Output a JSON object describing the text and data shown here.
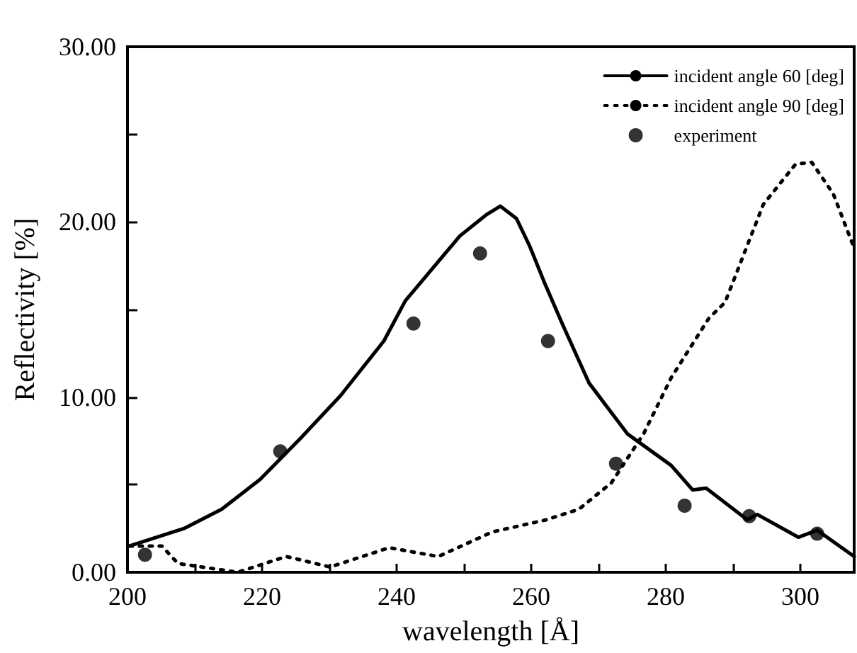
{
  "chart_data": {
    "type": "line",
    "xlabel": "wavelength [Å]",
    "ylabel": "Reflectivity [%]",
    "xlim": [
      200,
      308
    ],
    "ylim": [
      0,
      30
    ],
    "xticks": [
      200,
      {
        "value": 210,
        "label": null
      },
      220,
      {
        "value": 230,
        "label": null
      },
      240,
      {
        "value": 250,
        "label": null
      },
      260,
      {
        "value": 270,
        "label": null
      },
      280,
      {
        "value": 290,
        "label": null
      },
      300
    ],
    "yticks": [
      {
        "value": 0,
        "label": "0.00"
      },
      {
        "value": 5,
        "label": null
      },
      {
        "value": 10,
        "label": "10.00"
      },
      {
        "value": 15,
        "label": null
      },
      {
        "value": 20,
        "label": "20.00"
      },
      {
        "value": 25,
        "label": null
      },
      {
        "value": 30,
        "label": "30.00"
      }
    ],
    "grid": false,
    "legend": "top right",
    "series": [
      {
        "name": "incident angle 60 [deg]",
        "color": "#000000",
        "line_style": "solid",
        "marker": "none",
        "x": [
          200.3,
          208.4,
          214,
          219.7,
          225.6,
          231.7,
          238.1,
          241.3,
          249.4,
          253.3,
          255.4,
          257.8,
          259.8,
          261.9,
          264.6,
          268.6,
          274.3,
          280.8,
          284,
          286,
          292.1,
          293.6,
          299.7,
          302.5,
          308
        ],
        "values": [
          1.5,
          2.5,
          3.6,
          5.3,
          7.6,
          10.1,
          13.2,
          15.5,
          19.2,
          20.4,
          20.9,
          20.2,
          18.6,
          16.6,
          14.2,
          10.8,
          7.9,
          6.1,
          4.7,
          4.8,
          3,
          3.3,
          2,
          2.4,
          0.9
        ]
      },
      {
        "name": "incident angle 90 [deg]",
        "color": "#000000",
        "line_style": "dotted",
        "marker": "none",
        "x": [
          200.3,
          205.1,
          207.5,
          216.4,
          223.6,
          230.1,
          238.9,
          246.2,
          254.2,
          262.3,
          267.1,
          271.9,
          276.7,
          280.8,
          286.4,
          288.8,
          294.5,
          299.3,
          301.7,
          304.9,
          308
        ],
        "values": [
          1.5,
          1.5,
          0.5,
          0,
          0.9,
          0.3,
          1.4,
          0.9,
          2.3,
          3,
          3.6,
          5.1,
          7.9,
          11.1,
          14.5,
          15.4,
          21,
          23.3,
          23.4,
          21.6,
          18.5
        ]
      },
      {
        "name": "experiment",
        "type": "scatter",
        "color": "#000000",
        "marker": "circle",
        "x": [
          202.6,
          222.7,
          242.5,
          252.4,
          262.5,
          272.6,
          282.8,
          292.4,
          302.5
        ],
        "values": [
          1,
          6.9,
          14.2,
          18.2,
          13.2,
          6.2,
          3.8,
          3.2,
          2.2
        ]
      }
    ]
  }
}
